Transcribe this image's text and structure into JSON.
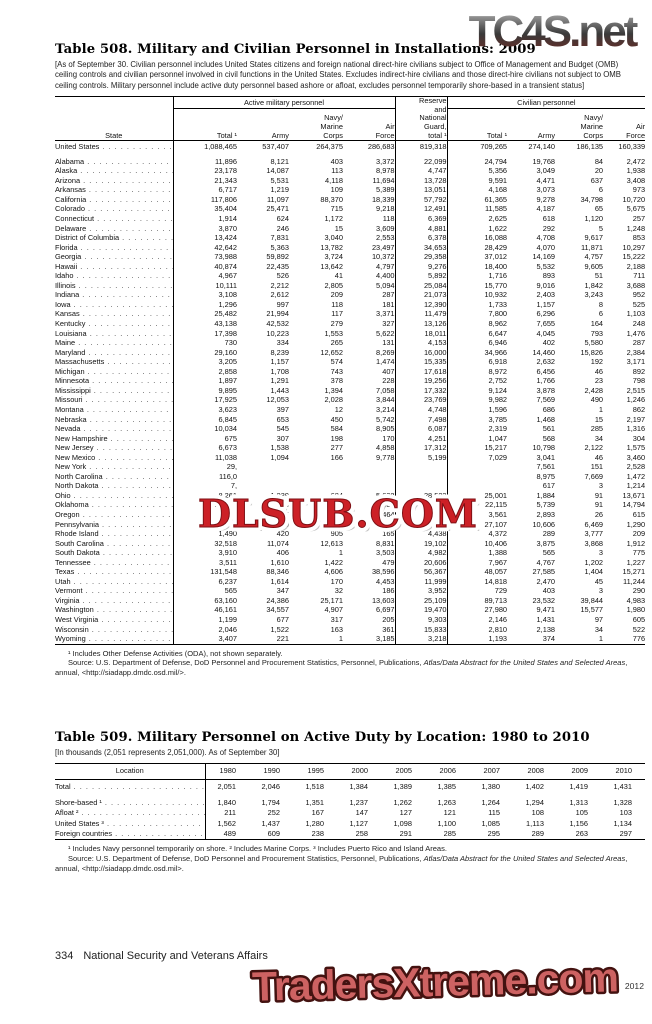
{
  "watermarks": {
    "top": "TC4S.net",
    "middle": "DLSUB.COM",
    "bottom": "TradersXtreme.com"
  },
  "table508": {
    "title": "Table 508. Military and Civilian Personnel in Installations: 2009",
    "note": "[As of September 30. Civilian personnel includes United States citizens and foreign national direct-hire civilians subject to Office of Management and Budget (OMB) ceiling controls and civilian personnel involved in civil functions in the United States. Excludes indirect-hire civilians and those direct-hire civilians not subject to OMB ceiling controls. Military personnel include active duty personnel based ashore or afloat, excludes personnel temporarily shore-based in a transient status]",
    "state_header": "State",
    "group_active": "Active military personnel",
    "group_reserve": "Reserve\nand\nNational\nGuard,\ntotal ¹",
    "group_civilian": "Civilian personnel",
    "subs": [
      "Total ¹",
      "Army",
      "Navy/\nMarine\nCorps",
      "Air\nForce",
      "Total ¹",
      "Army",
      "Navy/\nMarine\nCorps",
      "Air\nForce"
    ],
    "us_row": {
      "label": "United States",
      "bold": true,
      "values": [
        "1,088,465",
        "537,407",
        "264,375",
        "286,683",
        "819,318",
        "709,265",
        "274,140",
        "186,135",
        "160,339"
      ]
    },
    "rows": [
      {
        "label": "Alabama",
        "values": [
          "11,896",
          "8,121",
          "403",
          "3,372",
          "22,099",
          "24,794",
          "19,768",
          "84",
          "2,472"
        ]
      },
      {
        "label": "Alaska",
        "values": [
          "23,178",
          "14,087",
          "113",
          "8,978",
          "4,747",
          "5,356",
          "3,049",
          "20",
          "1,938"
        ]
      },
      {
        "label": "Arizona",
        "values": [
          "21,343",
          "5,531",
          "4,118",
          "11,694",
          "13,728",
          "9,591",
          "4,471",
          "637",
          "3,408"
        ]
      },
      {
        "label": "Arkansas",
        "values": [
          "6,717",
          "1,219",
          "109",
          "5,389",
          "13,051",
          "4,168",
          "3,073",
          "6",
          "973"
        ]
      },
      {
        "label": "California",
        "values": [
          "117,806",
          "11,097",
          "88,370",
          "18,339",
          "57,792",
          "61,365",
          "9,278",
          "34,798",
          "10,720"
        ]
      },
      {
        "label": "Colorado",
        "values": [
          "35,404",
          "25,471",
          "715",
          "9,218",
          "12,491",
          "11,585",
          "4,187",
          "65",
          "5,675"
        ]
      },
      {
        "label": "Connecticut",
        "values": [
          "1,914",
          "624",
          "1,172",
          "118",
          "6,369",
          "2,625",
          "618",
          "1,120",
          "257"
        ]
      },
      {
        "label": "Delaware",
        "values": [
          "3,870",
          "246",
          "15",
          "3,609",
          "4,881",
          "1,622",
          "292",
          "5",
          "1,248"
        ]
      },
      {
        "label": "District of Columbia",
        "values": [
          "13,424",
          "7,831",
          "3,040",
          "2,553",
          "6,378",
          "16,088",
          "4,708",
          "9,617",
          "853"
        ]
      },
      {
        "label": "Florida",
        "values": [
          "42,642",
          "5,363",
          "13,782",
          "23,497",
          "34,653",
          "28,429",
          "4,070",
          "11,871",
          "10,297"
        ]
      },
      {
        "label": "Georgia",
        "values": [
          "73,988",
          "59,892",
          "3,724",
          "10,372",
          "29,358",
          "37,012",
          "14,169",
          "4,757",
          "15,222"
        ]
      },
      {
        "label": "Hawaii",
        "values": [
          "40,874",
          "22,435",
          "13,642",
          "4,797",
          "9,276",
          "18,400",
          "5,532",
          "9,605",
          "2,188"
        ]
      },
      {
        "label": "Idaho",
        "values": [
          "4,967",
          "526",
          "41",
          "4,400",
          "5,892",
          "1,716",
          "893",
          "51",
          "711"
        ]
      },
      {
        "label": "Illinois",
        "values": [
          "10,111",
          "2,212",
          "2,805",
          "5,094",
          "25,084",
          "15,770",
          "9,016",
          "1,842",
          "3,688"
        ]
      },
      {
        "label": "Indiana",
        "values": [
          "3,108",
          "2,612",
          "209",
          "287",
          "21,073",
          "10,932",
          "2,403",
          "3,243",
          "952"
        ]
      },
      {
        "label": "Iowa",
        "values": [
          "1,296",
          "997",
          "118",
          "181",
          "12,390",
          "1,733",
          "1,157",
          "8",
          "525"
        ]
      },
      {
        "label": "Kansas",
        "values": [
          "25,482",
          "21,994",
          "117",
          "3,371",
          "11,479",
          "7,800",
          "6,296",
          "6",
          "1,103"
        ]
      },
      {
        "label": "Kentucky",
        "values": [
          "43,138",
          "42,532",
          "279",
          "327",
          "13,126",
          "8,962",
          "7,655",
          "164",
          "248"
        ]
      },
      {
        "label": "Louisiana",
        "values": [
          "17,398",
          "10,223",
          "1,553",
          "5,622",
          "18,011",
          "6,647",
          "4,045",
          "793",
          "1,476"
        ]
      },
      {
        "label": "Maine",
        "values": [
          "730",
          "334",
          "265",
          "131",
          "4,153",
          "6,946",
          "402",
          "5,580",
          "287"
        ]
      },
      {
        "label": "Maryland",
        "values": [
          "29,160",
          "8,239",
          "12,652",
          "8,269",
          "16,000",
          "34,966",
          "14,460",
          "15,826",
          "2,384"
        ]
      },
      {
        "label": "Massachusetts",
        "values": [
          "3,205",
          "1,157",
          "574",
          "1,474",
          "15,335",
          "6,918",
          "2,632",
          "192",
          "3,171"
        ]
      },
      {
        "label": "Michigan",
        "values": [
          "2,858",
          "1,708",
          "743",
          "407",
          "17,618",
          "8,972",
          "6,456",
          "46",
          "892"
        ]
      },
      {
        "label": "Minnesota",
        "values": [
          "1,897",
          "1,291",
          "378",
          "228",
          "19,256",
          "2,752",
          "1,766",
          "23",
          "798"
        ]
      },
      {
        "label": "Mississippi",
        "values": [
          "9,895",
          "1,443",
          "1,394",
          "7,058",
          "17,332",
          "9,124",
          "3,878",
          "2,428",
          "2,515"
        ]
      },
      {
        "label": "Missouri",
        "values": [
          "17,925",
          "12,053",
          "2,028",
          "3,844",
          "23,769",
          "9,982",
          "7,569",
          "490",
          "1,246"
        ]
      },
      {
        "label": "Montana",
        "values": [
          "3,623",
          "397",
          "12",
          "3,214",
          "4,748",
          "1,596",
          "686",
          "1",
          "862"
        ]
      },
      {
        "label": "Nebraska",
        "values": [
          "6,845",
          "653",
          "450",
          "5,742",
          "7,498",
          "3,785",
          "1,468",
          "15",
          "2,197"
        ]
      },
      {
        "label": "Nevada",
        "values": [
          "10,034",
          "545",
          "584",
          "8,905",
          "6,087",
          "2,319",
          "561",
          "285",
          "1,316"
        ]
      },
      {
        "label": "New Hampshire",
        "values": [
          "675",
          "307",
          "198",
          "170",
          "4,251",
          "1,047",
          "568",
          "34",
          "304"
        ]
      },
      {
        "label": "New Jersey",
        "values": [
          "6,673",
          "1,538",
          "277",
          "4,858",
          "17,312",
          "15,217",
          "10,798",
          "2,122",
          "1,575"
        ]
      },
      {
        "label": "New Mexico",
        "values": [
          "11,038",
          "1,094",
          "166",
          "9,778",
          "5,199",
          "7,029",
          "3,041",
          "46",
          "3,460"
        ]
      },
      {
        "label": "New York",
        "values": [
          "29,",
          "",
          "",
          "",
          "",
          "",
          "7,561",
          "151",
          "2,528"
        ]
      },
      {
        "label": "North Carolina",
        "values": [
          "116,0",
          "",
          "",
          "",
          "",
          "",
          "8,975",
          "7,669",
          "1,472"
        ]
      },
      {
        "label": "North Dakota",
        "values": [
          "7,",
          "",
          "",
          "",
          "",
          "",
          "617",
          "3",
          "1,214"
        ]
      },
      {
        "label": "Ohio",
        "values": [
          "8,261",
          "1,939",
          "684",
          "5,638",
          "28,523",
          "25,001",
          "1,884",
          "91",
          "13,671"
        ]
      },
      {
        "label": "Oklahoma",
        "values": [
          "21,673",
          "12,216",
          "926",
          "8,531",
          "15,640",
          "22,115",
          "5,739",
          "91",
          "14,794"
        ]
      },
      {
        "label": "Oregon",
        "values": [
          "1,615",
          "815",
          "336",
          "464",
          "10,470",
          "3,561",
          "2,893",
          "26",
          "615"
        ]
      },
      {
        "label": "Pennsylvania",
        "values": [
          "5,215",
          "3,270",
          "1,443",
          "502",
          "32,297",
          "27,107",
          "10,606",
          "6,469",
          "1,290"
        ]
      },
      {
        "label": "Rhode Island",
        "values": [
          "1,490",
          "420",
          "905",
          "165",
          "4,438",
          "4,372",
          "289",
          "3,777",
          "209"
        ]
      },
      {
        "label": "South Carolina",
        "values": [
          "32,518",
          "11,074",
          "12,613",
          "8,831",
          "19,102",
          "10,406",
          "3,875",
          "3,868",
          "1,912"
        ]
      },
      {
        "label": "South Dakota",
        "values": [
          "3,910",
          "406",
          "1",
          "3,503",
          "4,982",
          "1,388",
          "565",
          "3",
          "775"
        ]
      },
      {
        "label": "Tennessee",
        "values": [
          "3,511",
          "1,610",
          "1,422",
          "479",
          "20,606",
          "7,967",
          "4,767",
          "1,202",
          "1,227"
        ]
      },
      {
        "label": "Texas",
        "values": [
          "131,548",
          "88,346",
          "4,606",
          "38,596",
          "56,367",
          "48,057",
          "27,585",
          "1,404",
          "15,271"
        ]
      },
      {
        "label": "Utah",
        "values": [
          "6,237",
          "1,614",
          "170",
          "4,453",
          "11,999",
          "14,818",
          "2,470",
          "45",
          "11,244"
        ]
      },
      {
        "label": "Vermont",
        "values": [
          "565",
          "347",
          "32",
          "186",
          "3,952",
          "729",
          "403",
          "3",
          "290"
        ]
      },
      {
        "label": "Virginia",
        "values": [
          "63,160",
          "24,386",
          "25,171",
          "13,603",
          "25,109",
          "89,713",
          "23,532",
          "39,844",
          "4,983"
        ]
      },
      {
        "label": "Washington",
        "values": [
          "46,161",
          "34,557",
          "4,907",
          "6,697",
          "19,470",
          "27,980",
          "9,471",
          "15,577",
          "1,980"
        ]
      },
      {
        "label": "West Virginia",
        "values": [
          "1,199",
          "677",
          "317",
          "205",
          "9,303",
          "2,146",
          "1,431",
          "97",
          "605"
        ]
      },
      {
        "label": "Wisconsin",
        "values": [
          "2,046",
          "1,522",
          "163",
          "361",
          "15,833",
          "2,810",
          "2,138",
          "34",
          "522"
        ]
      },
      {
        "label": "Wyoming",
        "values": [
          "3,407",
          "221",
          "1",
          "3,185",
          "3,218",
          "1,193",
          "374",
          "1",
          "776"
        ]
      }
    ],
    "footnote1": "¹ Includes Other Defense Activities (ODA), not shown separately.",
    "source_prefix": "Source: U.S. Department of Defense, DoD Personnel and Procurement Statistics, Personnel, Publications, ",
    "source_italic": "Atlas/Data Abstract for the United States and Selected Areas",
    "source_suffix": ", annual, <http://siadapp.dmdc.osd.mil/>."
  },
  "table509": {
    "title": "Table 509. Military Personnel on Active Duty by Location: 1980 to 2010",
    "note": "[In thousands (2,051 represents 2,051,000). As of September 30]",
    "location_header": "Location",
    "years": [
      "1980",
      "1990",
      "1995",
      "2000",
      "2005",
      "2006",
      "2007",
      "2008",
      "2009",
      "2010"
    ],
    "total_row": {
      "label": "Total",
      "bold": true,
      "values": [
        "2,051",
        "2,046",
        "1,518",
        "1,384",
        "1,389",
        "1,385",
        "1,380",
        "1,402",
        "1,419",
        "1,431"
      ]
    },
    "rows": [
      {
        "label": "Shore-based ¹",
        "values": [
          "1,840",
          "1,794",
          "1,351",
          "1,237",
          "1,262",
          "1,263",
          "1,264",
          "1,294",
          "1,313",
          "1,328"
        ]
      },
      {
        "label": "Afloat ²",
        "values": [
          "211",
          "252",
          "167",
          "147",
          "127",
          "121",
          "115",
          "108",
          "105",
          "103"
        ]
      },
      {
        "label": "United States ³",
        "values": [
          "1,562",
          "1,437",
          "1,280",
          "1,127",
          "1,098",
          "1,100",
          "1,085",
          "1,113",
          "1,156",
          "1,134"
        ]
      },
      {
        "label": "Foreign countries",
        "values": [
          "489",
          "609",
          "238",
          "258",
          "291",
          "285",
          "295",
          "289",
          "263",
          "297"
        ]
      }
    ],
    "footnote1": "¹ Includes Navy personnel temporarily on shore. ² Includes Marine Corps. ³ Includes Puerto Rico and Island Areas.",
    "source_prefix": "Source: U.S. Department of Defense, DoD Personnel and Procurement Statistics, Personnel, Publications, ",
    "source_italic": "Atlas/Data Abstract for the United States and Selected Areas",
    "source_suffix": ", annual, <http://siadapp.dmdc.osd.mil>."
  },
  "footer": {
    "page_number": "334",
    "section": "National Security and Veterans Affairs",
    "credit": "U.S. Census Bureau, Statistical Abstract of the United States: 2012"
  },
  "colors": {
    "watermark_red": "#cc2026",
    "watermark_salmon": "#cd6262",
    "text": "#1a1a1a"
  }
}
